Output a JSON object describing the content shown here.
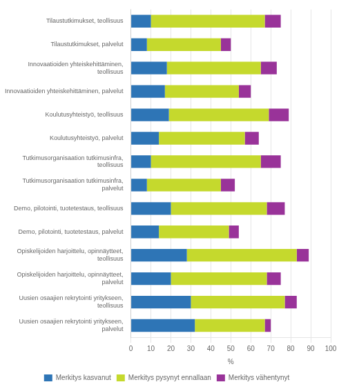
{
  "chart_data": {
    "type": "bar",
    "orientation": "horizontal",
    "stacked": true,
    "categories": [
      "Tilaustutkimukset, teollisuus",
      "Tilaustutkimukset, palvelut",
      "Innovaatioiden yhteiskehittäminen,\nteollisuus",
      "Innovaatioiden yhteiskehittäminen, palvelut",
      "Koulutusyhteistyö, teollisuus",
      "Koulutusyhteistyö, palvelut",
      "Tutkimusorganisaation tutkimusinfra,\nteollisuus",
      "Tutkimusorganisaation tutkimusinfra,\npalvelut",
      "Demo, pilotointi, tuotetestaus, teollisuus",
      "Demo, pilotointi, tuotetestaus, palvelut",
      "Opiskelijoiden harjoittelu, opinnäytteet,\nteollisuus",
      "Opiskelijoiden harjoittelu, opinnäytteet,\npalvelut",
      "Uusien osaajien rekrytointi yritykseen,\nteollisuus",
      "Uusien osaajien rekrytointi yritykseen,\npalvelut"
    ],
    "series": [
      {
        "name": "Merkitys kasvanut",
        "color": "#2E75B6",
        "values": [
          10,
          8,
          18,
          17,
          19,
          14,
          10,
          8,
          20,
          14,
          28,
          20,
          30,
          32
        ]
      },
      {
        "name": "Merkitys pysynyt ennallaan",
        "color": "#C5D92D",
        "values": [
          57,
          37,
          47,
          37,
          50,
          43,
          55,
          37,
          48,
          35,
          55,
          48,
          47,
          35
        ]
      },
      {
        "name": "Merkitys vähentynyt",
        "color": "#993399",
        "values": [
          8,
          5,
          8,
          6,
          10,
          7,
          10,
          7,
          9,
          5,
          6,
          7,
          6,
          3
        ]
      }
    ],
    "xlabel": "%",
    "xlim": [
      0,
      100
    ],
    "xticks": [
      0,
      10,
      20,
      30,
      40,
      50,
      60,
      70,
      80,
      90,
      100
    ],
    "grid": true,
    "legend": "bottom"
  }
}
